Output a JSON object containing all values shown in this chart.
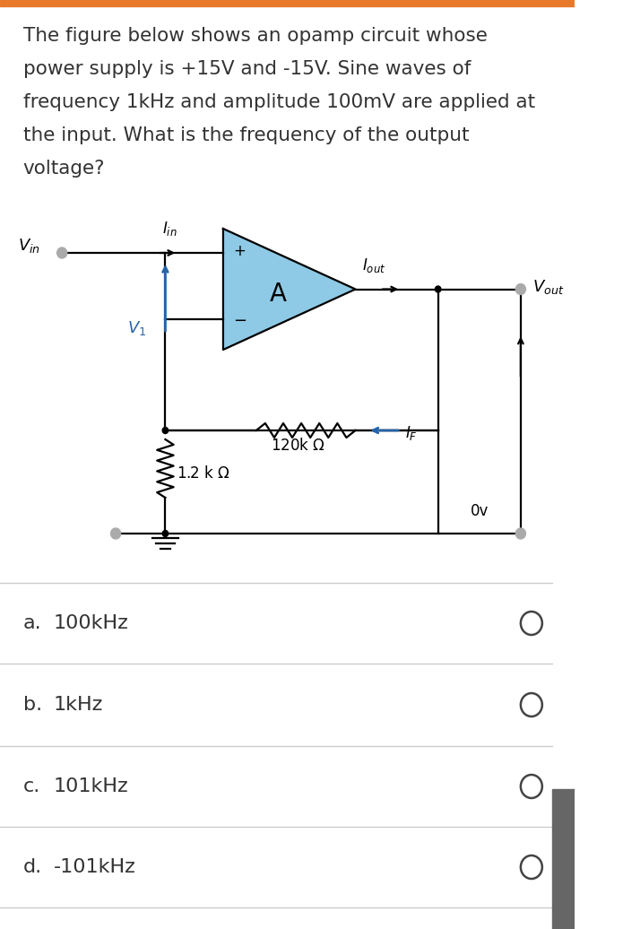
{
  "question_text": "The figure below shows an opamp circuit whose\npower supply is +15V and -15V. Sine waves of\nfrequency 1kHz and amplitude 100mV are applied at\nthe input. What is the frequency of the output\nvoltage?",
  "choices": [
    {
      "letter": "a.",
      "text": "100kHz"
    },
    {
      "letter": "b.",
      "text": "1kHz"
    },
    {
      "letter": "c.",
      "text": "101kHz"
    },
    {
      "letter": "d.",
      "text": "-101kHz"
    }
  ],
  "bg_color": "#ffffff",
  "top_bar_color": "#e8792a",
  "opamp_fill": "#8ecae6",
  "line_color": "#000000",
  "blue_color": "#2563a8",
  "text_color": "#333333",
  "divider_color": "#cccccc",
  "radio_color": "#444444",
  "right_bar_color": "#666666",
  "terminal_color": "#aaaaaa"
}
